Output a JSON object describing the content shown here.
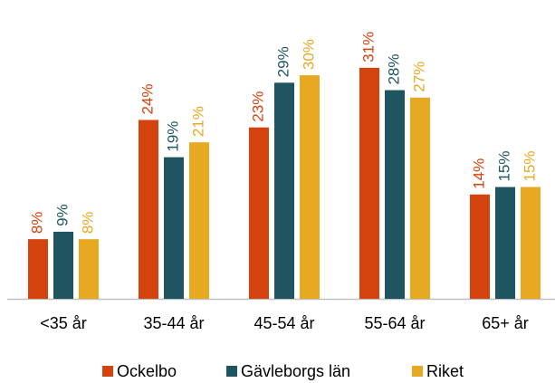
{
  "chart_data": {
    "type": "bar",
    "categories": [
      "<35 år",
      "35-44 år",
      "45-54 år",
      "55-64 år",
      "65+ år"
    ],
    "series": [
      {
        "name": "Ockelbo",
        "color": "#d4420e",
        "values": [
          8,
          24,
          23,
          31,
          14
        ],
        "value_labels": [
          "8%",
          "24%",
          "23%",
          "31%",
          "14%"
        ]
      },
      {
        "name": "Gävleborgs län",
        "color": "#1f5560",
        "values": [
          9,
          19,
          29,
          28,
          15
        ],
        "value_labels": [
          "9%",
          "19%",
          "29%",
          "28%",
          "15%"
        ]
      },
      {
        "name": "Riket",
        "color": "#e8a922",
        "values": [
          8,
          21,
          30,
          27,
          15
        ],
        "value_labels": [
          "8%",
          "21%",
          "30%",
          "27%",
          "15%"
        ]
      }
    ],
    "legend": "bottom"
  }
}
